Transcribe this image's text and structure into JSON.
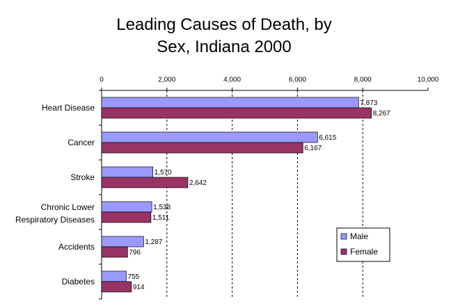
{
  "chart_data": {
    "type": "bar",
    "orientation": "horizontal",
    "title": "Leading Causes of Death, by Sex, Indiana 2000",
    "categories": [
      "Heart Disease",
      "Cancer",
      "Stroke",
      "Chronic Lower Respiratory Diseases",
      "Accidents",
      "Diabetes"
    ],
    "series": [
      {
        "name": "Male",
        "color": "#9999ff",
        "values": [
          7873,
          6615,
          1570,
          1538,
          1287,
          755
        ],
        "value_labels": [
          "7,873",
          "6,615",
          "1,570",
          "1,538",
          "1,287",
          "755"
        ]
      },
      {
        "name": "Female",
        "color": "#993366",
        "values": [
          8267,
          6167,
          2642,
          1511,
          796,
          914
        ],
        "value_labels": [
          "8,267",
          "6,167",
          "2,642",
          "1,511",
          "796",
          "914"
        ]
      }
    ],
    "xlim": [
      0,
      10000
    ],
    "xticks": [
      0,
      {
        "value": 2000,
        "label": "2,000"
      },
      {
        "value": 4000,
        "label": "4,000"
      },
      {
        "value": 6000,
        "label": "6,000"
      },
      {
        "value": 8000,
        "label": "8,000"
      },
      {
        "value": 10000,
        "label": "10,000"
      }
    ],
    "grid": true,
    "legend": "right"
  }
}
